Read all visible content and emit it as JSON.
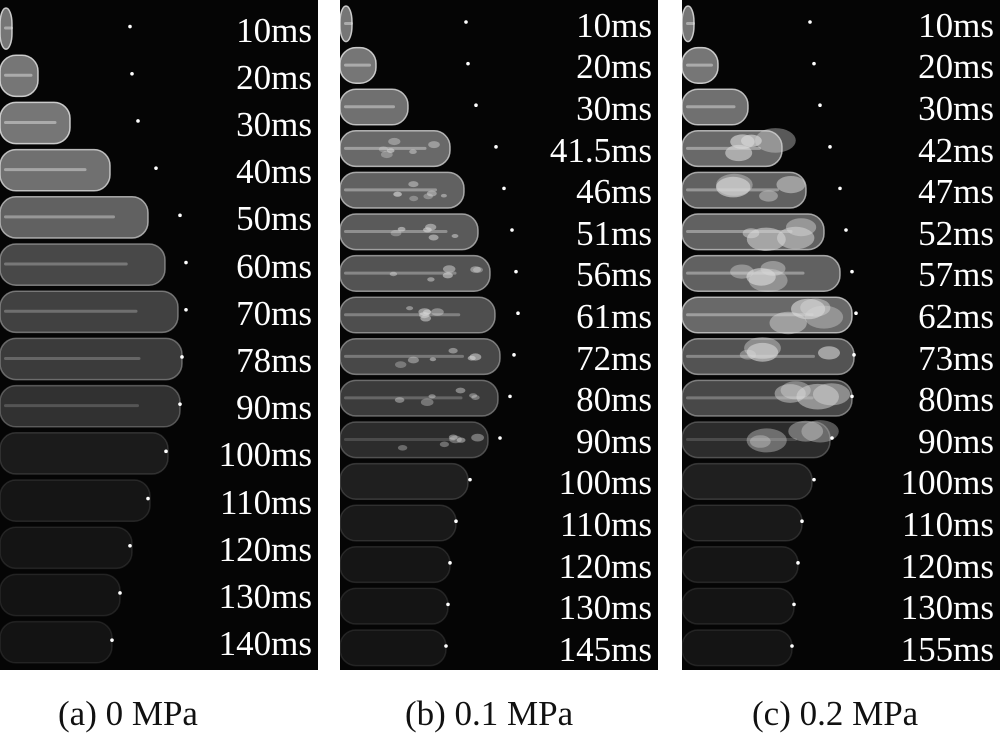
{
  "panels": [
    {
      "id": "a",
      "caption": "(a) 0 MPa",
      "times": [
        "10ms",
        "20ms",
        "30ms",
        "40ms",
        "50ms",
        "60ms",
        "70ms",
        "78ms",
        "90ms",
        "100ms",
        "110ms",
        "120ms",
        "130ms",
        "140ms"
      ]
    },
    {
      "id": "b",
      "caption": "(b) 0.1 MPa",
      "times": [
        "10ms",
        "20ms",
        "30ms",
        "41.5ms",
        "46ms",
        "51ms",
        "56ms",
        "61ms",
        "72ms",
        "80ms",
        "90ms",
        "100ms",
        "110ms",
        "120ms",
        "130ms",
        "145ms"
      ]
    },
    {
      "id": "c",
      "caption": "(c) 0.2 MPa",
      "times": [
        "10ms",
        "20ms",
        "30ms",
        "42ms",
        "47ms",
        "52ms",
        "57ms",
        "62ms",
        "73ms",
        "80ms",
        "90ms",
        "100ms",
        "110ms",
        "120ms",
        "130ms",
        "155ms"
      ]
    }
  ]
}
